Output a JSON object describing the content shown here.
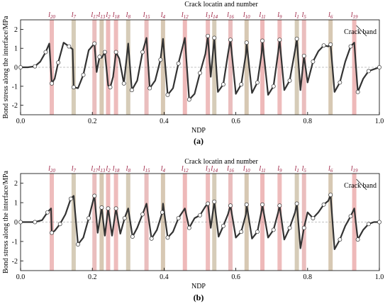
{
  "chart_data": [
    {
      "type": "line",
      "caption": "(a)",
      "top_label": "Crack locatin and number",
      "xlabel": "NDP",
      "ylabel": "Bond stress along the interface/MPa",
      "xlim": [
        0.0,
        1.0
      ],
      "ylim": [
        -2.5,
        2.5
      ],
      "xticks": [
        "0.0",
        "0.2",
        "0.4",
        "0.6",
        "0.8",
        "1.0"
      ],
      "yticks": [
        "-2",
        "-1",
        "0",
        "1",
        "2"
      ],
      "annotation": "Crack band",
      "cracks": [
        {
          "name": "l20",
          "x": 0.087
        },
        {
          "name": "l7",
          "x": 0.148
        },
        {
          "name": "l17",
          "x": 0.206
        },
        {
          "name": "l13",
          "x": 0.226
        },
        {
          "name": "l2",
          "x": 0.244
        },
        {
          "name": "l18",
          "x": 0.266
        },
        {
          "name": "l8",
          "x": 0.3
        },
        {
          "name": "l15",
          "x": 0.351
        },
        {
          "name": "l4",
          "x": 0.397
        },
        {
          "name": "l12",
          "x": 0.458
        },
        {
          "name": "l3",
          "x": 0.522
        },
        {
          "name": "l14",
          "x": 0.54
        },
        {
          "name": "l16",
          "x": 0.585
        },
        {
          "name": "l10",
          "x": 0.63
        },
        {
          "name": "l11",
          "x": 0.674
        },
        {
          "name": "l9",
          "x": 0.722
        },
        {
          "name": "l1",
          "x": 0.77
        },
        {
          "name": "l5",
          "x": 0.79
        },
        {
          "name": "l6",
          "x": 0.864
        },
        {
          "name": "l19",
          "x": 0.93
        }
      ],
      "series": [
        {
          "x": [
            0.0,
            0.02,
            0.04,
            0.055,
            0.07,
            0.08,
            0.087,
            0.095,
            0.105,
            0.12,
            0.135,
            0.145,
            0.148,
            0.16,
            0.175,
            0.19,
            0.206,
            0.212,
            0.22,
            0.226,
            0.235,
            0.244,
            0.25,
            0.258,
            0.266,
            0.275,
            0.288,
            0.3,
            0.31,
            0.325,
            0.34,
            0.351,
            0.36,
            0.375,
            0.39,
            0.397,
            0.41,
            0.425,
            0.44,
            0.458,
            0.47,
            0.485,
            0.5,
            0.515,
            0.522,
            0.53,
            0.54,
            0.55,
            0.565,
            0.578,
            0.585,
            0.6,
            0.615,
            0.628,
            0.63,
            0.645,
            0.66,
            0.672,
            0.674,
            0.69,
            0.705,
            0.718,
            0.722,
            0.735,
            0.75,
            0.765,
            0.77,
            0.78,
            0.79,
            0.8,
            0.815,
            0.83,
            0.845,
            0.858,
            0.864,
            0.875,
            0.89,
            0.905,
            0.92,
            0.93,
            0.94,
            0.955,
            0.97,
            0.985,
            1.0
          ],
          "y": [
            0.0,
            0.0,
            0.05,
            0.3,
            0.8,
            1.25,
            -0.85,
            -0.6,
            0.25,
            1.3,
            1.1,
            0.95,
            -1.05,
            -1.1,
            -0.4,
            0.9,
            1.25,
            -0.25,
            0.55,
            0.5,
            0.8,
            -0.95,
            -1.05,
            -0.5,
            0.8,
            0.45,
            -0.85,
            1.25,
            -1.2,
            -0.7,
            0.8,
            1.55,
            -1.1,
            -0.7,
            0.4,
            1.5,
            -1.45,
            -1.1,
            0.2,
            1.55,
            -1.7,
            -1.4,
            -0.3,
            0.7,
            1.65,
            -0.5,
            1.55,
            -1.3,
            -0.9,
            0.7,
            1.45,
            -1.4,
            -0.9,
            0.7,
            1.3,
            -1.35,
            -0.8,
            0.75,
            1.4,
            -1.45,
            -1.0,
            0.8,
            1.45,
            -1.2,
            -0.7,
            0.9,
            1.5,
            -1.2,
            0.6,
            -0.8,
            0.3,
            0.85,
            1.15,
            1.1,
            1.2,
            -1.3,
            -0.8,
            0.3,
            1.1,
            1.3,
            -1.3,
            -0.6,
            -0.2,
            -0.1,
            0.0
          ]
        }
      ]
    },
    {
      "type": "line",
      "caption": "(b)",
      "top_label": "Crack locatin and number",
      "xlabel": "NDP",
      "ylabel": "Bond stress along the interface/MPa",
      "xlim": [
        0.0,
        1.0
      ],
      "ylim": [
        -2.5,
        2.5
      ],
      "xticks": [
        "0.0",
        "0.2",
        "0.4",
        "0.6",
        "0.8",
        "1.0"
      ],
      "yticks": [
        "-2",
        "-1",
        "0",
        "1",
        "2"
      ],
      "annotation": "Crack band",
      "cracks": [
        {
          "name": "l20",
          "x": 0.087
        },
        {
          "name": "l7",
          "x": 0.148
        },
        {
          "name": "l17",
          "x": 0.206
        },
        {
          "name": "l13",
          "x": 0.226
        },
        {
          "name": "l2",
          "x": 0.244
        },
        {
          "name": "l18",
          "x": 0.266
        },
        {
          "name": "l8",
          "x": 0.3
        },
        {
          "name": "l15",
          "x": 0.351
        },
        {
          "name": "l4",
          "x": 0.397
        },
        {
          "name": "l12",
          "x": 0.458
        },
        {
          "name": "l3",
          "x": 0.522
        },
        {
          "name": "l14",
          "x": 0.54
        },
        {
          "name": "l16",
          "x": 0.585
        },
        {
          "name": "l10",
          "x": 0.63
        },
        {
          "name": "l11",
          "x": 0.674
        },
        {
          "name": "l9",
          "x": 0.722
        },
        {
          "name": "l1",
          "x": 0.77
        },
        {
          "name": "l5",
          "x": 0.79
        },
        {
          "name": "l6",
          "x": 0.864
        },
        {
          "name": "l19",
          "x": 0.93
        }
      ],
      "series": [
        {
          "x": [
            0.0,
            0.02,
            0.04,
            0.06,
            0.075,
            0.085,
            0.087,
            0.095,
            0.11,
            0.125,
            0.14,
            0.148,
            0.16,
            0.175,
            0.19,
            0.205,
            0.206,
            0.215,
            0.226,
            0.235,
            0.244,
            0.255,
            0.266,
            0.278,
            0.29,
            0.3,
            0.312,
            0.325,
            0.34,
            0.351,
            0.365,
            0.38,
            0.395,
            0.397,
            0.41,
            0.425,
            0.44,
            0.458,
            0.47,
            0.485,
            0.5,
            0.515,
            0.522,
            0.53,
            0.54,
            0.552,
            0.565,
            0.578,
            0.585,
            0.6,
            0.615,
            0.628,
            0.63,
            0.645,
            0.66,
            0.672,
            0.674,
            0.69,
            0.705,
            0.718,
            0.722,
            0.735,
            0.75,
            0.765,
            0.77,
            0.78,
            0.79,
            0.8,
            0.815,
            0.83,
            0.845,
            0.858,
            0.864,
            0.875,
            0.89,
            0.905,
            0.92,
            0.93,
            0.94,
            0.955,
            0.97,
            0.985,
            1.0
          ],
          "y": [
            0.0,
            0.0,
            0.0,
            0.1,
            0.5,
            0.7,
            -0.55,
            -0.45,
            -0.1,
            0.4,
            1.2,
            1.35,
            -1.15,
            -0.8,
            0.2,
            1.3,
            1.35,
            -0.55,
            0.75,
            -0.7,
            0.7,
            -0.7,
            0.7,
            -0.6,
            0.2,
            0.7,
            -0.75,
            -0.3,
            0.4,
            0.95,
            -0.85,
            -0.4,
            0.5,
            0.95,
            -0.8,
            -0.5,
            0.2,
            0.7,
            -0.3,
            0.2,
            0.35,
            0.8,
            0.95,
            -0.3,
            1.05,
            -0.75,
            -0.2,
            0.4,
            0.85,
            -0.8,
            -0.5,
            0.4,
            0.9,
            -0.85,
            -0.5,
            0.6,
            0.9,
            -0.8,
            -0.4,
            0.5,
            0.85,
            -0.9,
            -0.3,
            0.5,
            0.95,
            -1.35,
            -0.3,
            0.5,
            0.2,
            0.5,
            0.9,
            1.1,
            1.4,
            -1.4,
            -0.9,
            -0.2,
            0.3,
            0.7,
            -0.9,
            -0.4,
            -0.1,
            0.0,
            0.0
          ]
        }
      ]
    }
  ]
}
